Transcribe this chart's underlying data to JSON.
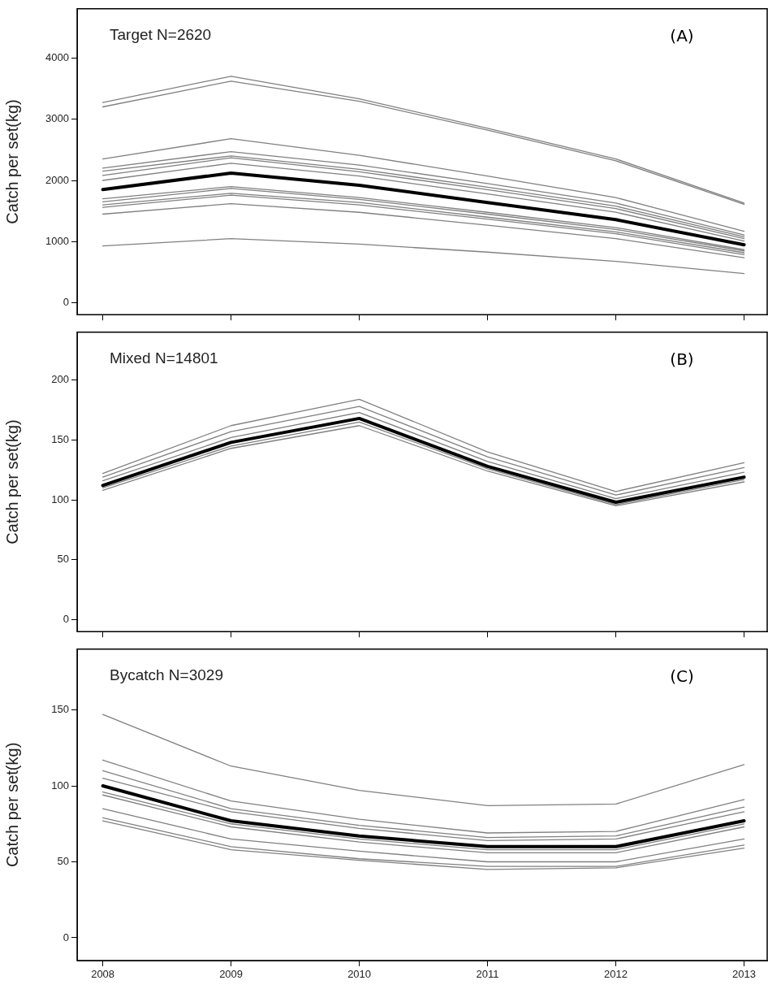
{
  "chart_data": [
    {
      "type": "line",
      "title": "Target N=2620",
      "annotations": [
        "(A)"
      ],
      "ylabel": "Catch per set(kg)",
      "x": [
        2008,
        2009,
        2010,
        2011,
        2012,
        2013
      ],
      "xlim": [
        2007.8,
        2013.18
      ],
      "xticks": [
        2008,
        2009,
        2010,
        2011,
        2012,
        2013
      ],
      "ylim": [
        -190,
        4800
      ],
      "yticks": [
        0,
        1000,
        2000,
        3000,
        4000
      ],
      "tick_labels": "y",
      "series": [
        {
          "color": "#808080",
          "values": [
            3270,
            3700,
            3330,
            2850,
            2350,
            1630
          ]
        },
        {
          "color": "#808080",
          "values": [
            3200,
            3620,
            3290,
            2820,
            2320,
            1610
          ]
        },
        {
          "color": "#808080",
          "values": [
            2350,
            2680,
            2410,
            2070,
            1720,
            1170
          ]
        },
        {
          "color": "#808080",
          "values": [
            2200,
            2470,
            2250,
            1950,
            1630,
            1110
          ]
        },
        {
          "color": "#808080",
          "values": [
            2150,
            2400,
            2180,
            1890,
            1580,
            1080
          ]
        },
        {
          "color": "#808080",
          "values": [
            2080,
            2370,
            2140,
            1850,
            1540,
            1050
          ]
        },
        {
          "color": "#808080",
          "values": [
            2000,
            2280,
            2070,
            1780,
            1480,
            1010
          ]
        },
        {
          "color": "#808080",
          "values": [
            1700,
            1900,
            1720,
            1480,
            1230,
            870
          ]
        },
        {
          "color": "#808080",
          "values": [
            1650,
            1870,
            1690,
            1450,
            1200,
            850
          ]
        },
        {
          "color": "#808080",
          "values": [
            1600,
            1790,
            1640,
            1400,
            1160,
            820
          ]
        },
        {
          "color": "#808080",
          "values": [
            1560,
            1760,
            1600,
            1370,
            1130,
            790
          ]
        },
        {
          "color": "#808080",
          "values": [
            1450,
            1620,
            1480,
            1270,
            1050,
            740
          ]
        },
        {
          "color": "#808080",
          "values": [
            930,
            1050,
            960,
            830,
            680,
            480
          ]
        },
        {
          "color": "#000000",
          "values": [
            1850,
            2120,
            1920,
            1640,
            1360,
            950
          ]
        }
      ]
    },
    {
      "type": "line",
      "title": "Mixed N=14801",
      "annotations": [
        "(B)"
      ],
      "ylabel": "Catch per set(kg)",
      "x": [
        2008,
        2009,
        2010,
        2011,
        2012,
        2013
      ],
      "xlim": [
        2007.8,
        2013.18
      ],
      "xticks": [
        2008,
        2009,
        2010,
        2011,
        2012,
        2013
      ],
      "ylim": [
        -10,
        240
      ],
      "yticks": [
        0,
        50,
        100,
        150,
        200
      ],
      "tick_labels": "y",
      "series": [
        {
          "color": "#808080",
          "values": [
            122,
            162,
            184,
            140,
            107,
            131
          ]
        },
        {
          "color": "#808080",
          "values": [
            119,
            157,
            178,
            136,
            104,
            127
          ]
        },
        {
          "color": "#808080",
          "values": [
            116,
            152,
            173,
            132,
            101,
            123
          ]
        },
        {
          "color": "#808080",
          "values": [
            110,
            145,
            165,
            126,
            96,
            117
          ]
        },
        {
          "color": "#808080",
          "values": [
            108,
            143,
            162,
            124,
            95,
            115
          ]
        },
        {
          "color": "#000000",
          "values": [
            112,
            148,
            168,
            128,
            98,
            119
          ]
        }
      ]
    },
    {
      "type": "line",
      "title": "Bycatch N=3029",
      "annotations": [
        "(C)"
      ],
      "ylabel": "Catch per set(kg)",
      "x": [
        2008,
        2009,
        2010,
        2011,
        2012,
        2013
      ],
      "xlim": [
        2007.8,
        2013.18
      ],
      "xticks": [
        2008,
        2009,
        2010,
        2011,
        2012,
        2013
      ],
      "ylim": [
        -15,
        190
      ],
      "yticks": [
        0,
        50,
        100,
        150
      ],
      "series": [
        {
          "color": "#808080",
          "values": [
            147,
            113,
            97,
            87,
            88,
            114
          ]
        },
        {
          "color": "#808080",
          "values": [
            117,
            90,
            78,
            69,
            70,
            91
          ]
        },
        {
          "color": "#808080",
          "values": [
            110,
            85,
            74,
            66,
            67,
            86
          ]
        },
        {
          "color": "#808080",
          "values": [
            105,
            83,
            72,
            64,
            65,
            83
          ]
        },
        {
          "color": "#808080",
          "values": [
            96,
            75,
            65,
            58,
            58,
            75
          ]
        },
        {
          "color": "#808080",
          "values": [
            94,
            73,
            63,
            56,
            56,
            73
          ]
        },
        {
          "color": "#808080",
          "values": [
            85,
            65,
            57,
            50,
            50,
            65
          ]
        },
        {
          "color": "#808080",
          "values": [
            79,
            60,
            52,
            47,
            47,
            61
          ]
        },
        {
          "color": "#808080",
          "values": [
            77,
            58,
            51,
            45,
            46,
            59
          ]
        },
        {
          "color": "#000000",
          "values": [
            100,
            77,
            67,
            60,
            60,
            77
          ]
        }
      ]
    }
  ]
}
